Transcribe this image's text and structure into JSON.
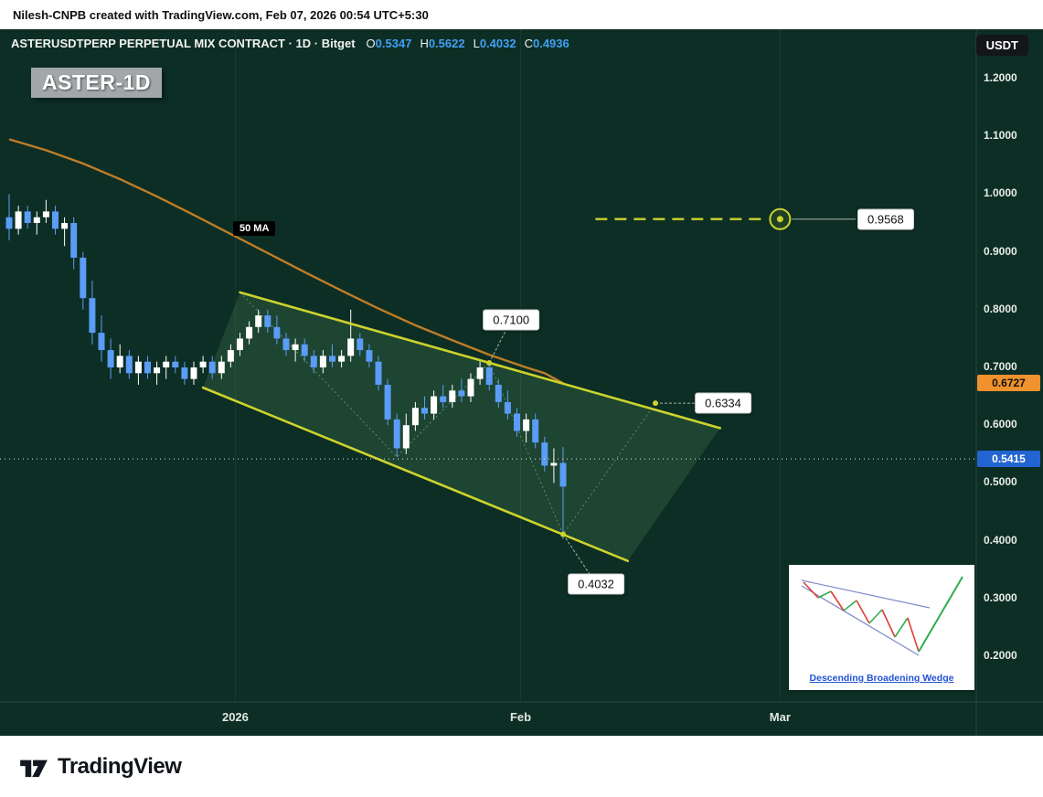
{
  "attribution": "Nilesh-CNPB created with TradingView.com, Feb 07, 2026 00:54 UTC+5:30",
  "header": {
    "symbol": "ASTERUSDTPERP PERPETUAL MIX CONTRACT · 1D · Bitget",
    "ohlc": [
      {
        "label": "O",
        "value": "0.5347"
      },
      {
        "label": "H",
        "value": "0.5622"
      },
      {
        "label": "L",
        "value": "0.4032"
      },
      {
        "label": "C",
        "value": "0.4936"
      }
    ],
    "quote_badge": "USDT"
  },
  "watermark": "ASTER-1D",
  "ma_label": "50 MA",
  "badges": {
    "ma_value": "0.6727",
    "last_price": "0.5415"
  },
  "callouts": {
    "target": "0.9568",
    "wedge_high": "0.7100",
    "wedge_mid": "0.6334",
    "wedge_low": "0.4032"
  },
  "inset_caption": "Descending Broadening Wedge",
  "footer_brand": "TradingView",
  "colors": {
    "background": "#0c2e25",
    "candle_up": "#ffffff",
    "candle_down": "#5b9cf6",
    "ma_line": "#bf7d28",
    "wedge_line": "#cdd32c",
    "last_price_badge": "#2264d1",
    "ma_badge": "#f0922d",
    "ohlc_value": "#42a0f5"
  },
  "chart_data": {
    "type": "candlestick",
    "title": "ASTERUSDTPERP PERPETUAL MIX CONTRACT 1D Bitget",
    "ylim": [
      0.2,
      1.2
    ],
    "grid": "off",
    "legend_position": "none",
    "price_ticks": [
      "1.2000",
      "1.1000",
      "1.0000",
      "0.9000",
      "0.8000",
      "0.7000",
      "0.6000",
      "0.5000",
      "0.4000",
      "0.3000",
      "0.2000"
    ],
    "time_ticks": [
      {
        "label": "2026",
        "day": 24.5
      },
      {
        "label": "Feb",
        "day": 55.4
      },
      {
        "label": "Mar",
        "day": 83.5
      }
    ],
    "candles": [
      [
        0.96,
        1.0,
        0.92,
        0.94
      ],
      [
        0.94,
        0.98,
        0.93,
        0.97
      ],
      [
        0.97,
        0.98,
        0.94,
        0.95
      ],
      [
        0.95,
        0.97,
        0.93,
        0.96
      ],
      [
        0.96,
        0.99,
        0.95,
        0.97
      ],
      [
        0.97,
        0.98,
        0.93,
        0.94
      ],
      [
        0.94,
        0.96,
        0.91,
        0.95
      ],
      [
        0.95,
        0.96,
        0.87,
        0.89
      ],
      [
        0.89,
        0.9,
        0.8,
        0.82
      ],
      [
        0.82,
        0.85,
        0.74,
        0.76
      ],
      [
        0.76,
        0.79,
        0.71,
        0.73
      ],
      [
        0.73,
        0.75,
        0.68,
        0.7
      ],
      [
        0.7,
        0.74,
        0.69,
        0.72
      ],
      [
        0.72,
        0.73,
        0.68,
        0.69
      ],
      [
        0.69,
        0.72,
        0.67,
        0.71
      ],
      [
        0.71,
        0.72,
        0.68,
        0.69
      ],
      [
        0.69,
        0.71,
        0.67,
        0.7
      ],
      [
        0.7,
        0.72,
        0.68,
        0.71
      ],
      [
        0.71,
        0.72,
        0.69,
        0.7
      ],
      [
        0.7,
        0.71,
        0.67,
        0.68
      ],
      [
        0.68,
        0.71,
        0.67,
        0.7
      ],
      [
        0.7,
        0.72,
        0.69,
        0.71
      ],
      [
        0.71,
        0.72,
        0.68,
        0.69
      ],
      [
        0.69,
        0.72,
        0.68,
        0.71
      ],
      [
        0.71,
        0.74,
        0.7,
        0.73
      ],
      [
        0.73,
        0.76,
        0.72,
        0.75
      ],
      [
        0.75,
        0.78,
        0.74,
        0.77
      ],
      [
        0.77,
        0.8,
        0.76,
        0.79
      ],
      [
        0.79,
        0.8,
        0.76,
        0.77
      ],
      [
        0.77,
        0.79,
        0.74,
        0.75
      ],
      [
        0.75,
        0.76,
        0.72,
        0.73
      ],
      [
        0.73,
        0.75,
        0.71,
        0.74
      ],
      [
        0.74,
        0.75,
        0.71,
        0.72
      ],
      [
        0.72,
        0.73,
        0.69,
        0.7
      ],
      [
        0.7,
        0.73,
        0.69,
        0.72
      ],
      [
        0.72,
        0.74,
        0.7,
        0.71
      ],
      [
        0.71,
        0.73,
        0.7,
        0.72
      ],
      [
        0.72,
        0.8,
        0.71,
        0.75
      ],
      [
        0.75,
        0.76,
        0.72,
        0.73
      ],
      [
        0.73,
        0.74,
        0.7,
        0.71
      ],
      [
        0.71,
        0.72,
        0.66,
        0.67
      ],
      [
        0.67,
        0.68,
        0.6,
        0.61
      ],
      [
        0.61,
        0.62,
        0.545,
        0.56
      ],
      [
        0.56,
        0.62,
        0.55,
        0.6
      ],
      [
        0.6,
        0.64,
        0.59,
        0.63
      ],
      [
        0.63,
        0.65,
        0.61,
        0.62
      ],
      [
        0.62,
        0.66,
        0.61,
        0.65
      ],
      [
        0.65,
        0.67,
        0.63,
        0.64
      ],
      [
        0.64,
        0.67,
        0.63,
        0.66
      ],
      [
        0.66,
        0.68,
        0.64,
        0.65
      ],
      [
        0.65,
        0.69,
        0.64,
        0.68
      ],
      [
        0.68,
        0.71,
        0.67,
        0.7
      ],
      [
        0.7,
        0.71,
        0.66,
        0.67
      ],
      [
        0.67,
        0.68,
        0.63,
        0.64
      ],
      [
        0.64,
        0.66,
        0.61,
        0.62
      ],
      [
        0.62,
        0.63,
        0.58,
        0.59
      ],
      [
        0.59,
        0.62,
        0.57,
        0.61
      ],
      [
        0.61,
        0.62,
        0.56,
        0.57
      ],
      [
        0.57,
        0.58,
        0.52,
        0.53
      ],
      [
        0.53,
        0.56,
        0.5,
        0.5347
      ],
      [
        0.5347,
        0.5622,
        0.4032,
        0.4936
      ]
    ],
    "ma50": [
      [
        0,
        1.095
      ],
      [
        4,
        1.076
      ],
      [
        8,
        1.053
      ],
      [
        12,
        1.026
      ],
      [
        16,
        0.996
      ],
      [
        20,
        0.964
      ],
      [
        24,
        0.931
      ],
      [
        28,
        0.898
      ],
      [
        32,
        0.865
      ],
      [
        36,
        0.833
      ],
      [
        40,
        0.802
      ],
      [
        44,
        0.773
      ],
      [
        48,
        0.747
      ],
      [
        52,
        0.722
      ],
      [
        56,
        0.7
      ],
      [
        58,
        0.69
      ],
      [
        60,
        0.6727
      ]
    ],
    "wedge": {
      "upper": [
        [
          25,
          0.83
        ],
        [
          77,
          0.595
        ]
      ],
      "lower": [
        [
          21,
          0.665
        ],
        [
          67,
          0.365
        ]
      ]
    },
    "zigzag": [
      [
        25,
        0.83
      ],
      [
        42,
        0.545
      ],
      [
        52,
        0.708
      ],
      [
        60,
        0.411
      ],
      [
        70,
        0.638
      ]
    ],
    "markers": [
      {
        "name": "wedge_high",
        "day": 52,
        "price": 0.708,
        "label": "0.7100"
      },
      {
        "name": "wedge_low",
        "day": 60,
        "price": 0.411,
        "label": "0.4032"
      },
      {
        "name": "wedge_mid",
        "day": 70,
        "price": 0.638,
        "label": "0.6334"
      }
    ],
    "target_line": {
      "price": 0.9568,
      "day_start": 63.5,
      "day_end": 83.5,
      "label": "0.9568"
    },
    "last_price_line": 0.5415,
    "ma_last_value": 0.6727
  }
}
